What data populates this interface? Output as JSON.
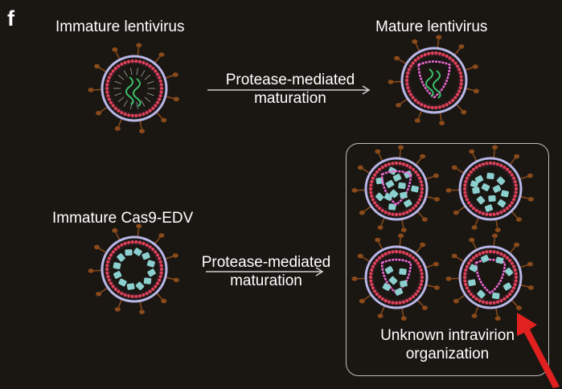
{
  "panel_letter": "f",
  "titles": {
    "immature_lentivirus": "Immature lentivirus",
    "mature_lentivirus": "Mature lentivirus",
    "immature_cas9_edv": "Immature Cas9-EDV"
  },
  "arrows": {
    "top": {
      "line1": "Protease-mediated",
      "line2": "maturation"
    },
    "bottom": {
      "line1": "Protease-mediated",
      "line2": "maturation"
    }
  },
  "unknown_box": {
    "line1": "Unknown intravirion",
    "line2": "organization"
  },
  "colors": {
    "background": "#1a1713",
    "envelope": "#b9b7e8",
    "matrix": "#e0405a",
    "capsid": "#f06ad8",
    "cas9": "#8ccfcf",
    "rna": "#3cc26a",
    "spike": "#8a4a1a",
    "highlight_arrow": "#e0211f"
  }
}
